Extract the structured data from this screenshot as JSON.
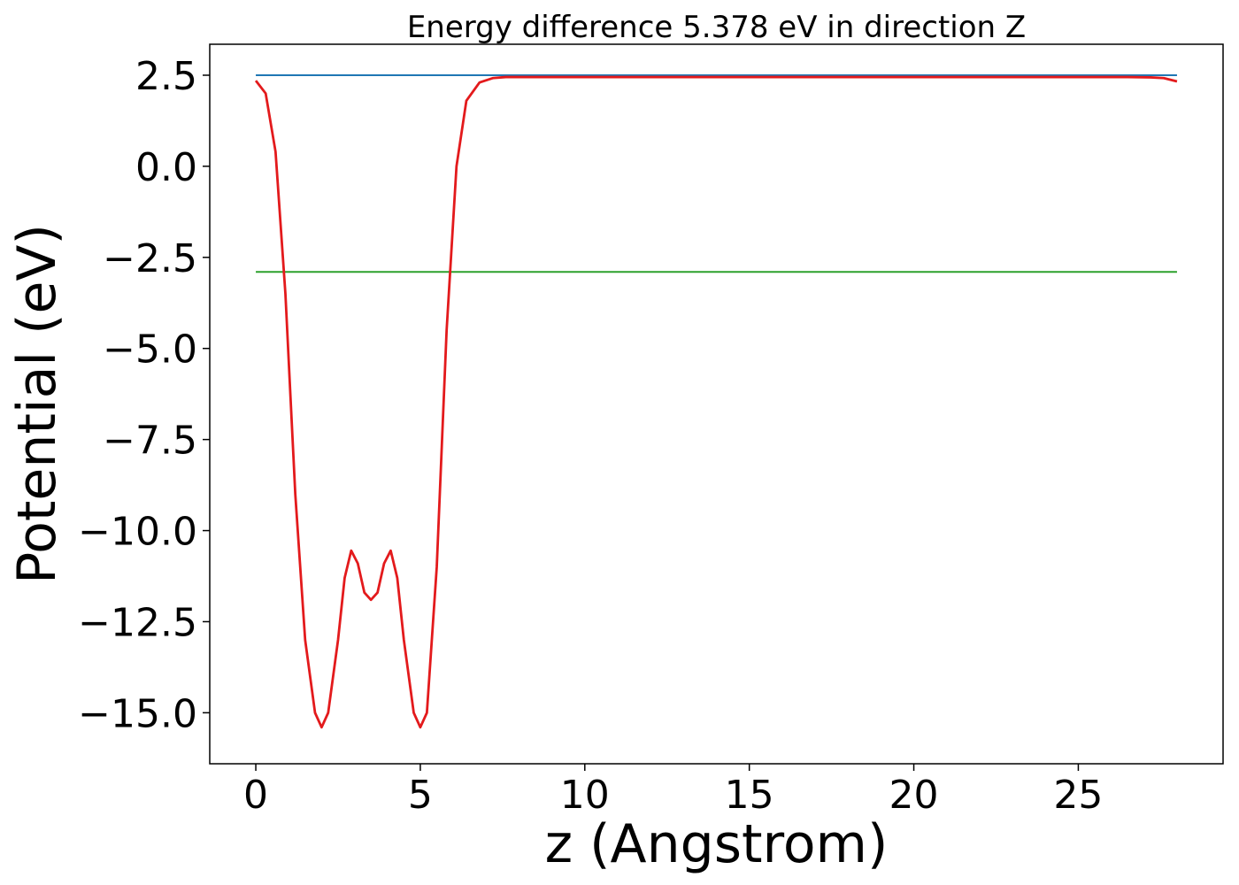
{
  "chart_data": {
    "type": "line",
    "title": "Energy difference 5.378 eV in direction Z",
    "xlabel": "z (Angstrom)",
    "ylabel": "Potential (eV)",
    "xlim": [
      -1.4,
      29.4
    ],
    "ylim": [
      -16.4,
      3.35
    ],
    "xticks": [
      0,
      5,
      10,
      15,
      20,
      25
    ],
    "xtick_labels": [
      "0",
      "5",
      "10",
      "15",
      "20",
      "25"
    ],
    "yticks": [
      2.5,
      0.0,
      -2.5,
      -5.0,
      -7.5,
      -10.0,
      -12.5,
      -15.0
    ],
    "ytick_labels": [
      "2.5",
      "0.0",
      "−2.5",
      "−5.0",
      "−7.5",
      "−10.0",
      "−12.5",
      "−15.0"
    ],
    "grid": false,
    "series": [
      {
        "color": "#1f77b4",
        "x": [
          0,
          28.0
        ],
        "y": [
          2.5,
          2.5
        ]
      },
      {
        "color": "#2ca02c",
        "x": [
          0,
          28.0
        ],
        "y": [
          -2.9,
          -2.9
        ]
      },
      {
        "color": "#e31a1c",
        "x": [
          0,
          0.3,
          0.6,
          0.9,
          1.2,
          1.5,
          1.8,
          2.0,
          2.2,
          2.5,
          2.7,
          2.9,
          3.1,
          3.3,
          3.5,
          3.7,
          3.9,
          4.1,
          4.3,
          4.5,
          4.8,
          5.0,
          5.2,
          5.5,
          5.8,
          6.1,
          6.4,
          6.8,
          7.2,
          7.6,
          8.0,
          9.0,
          12.0,
          16.0,
          20.0,
          24.0,
          26.5,
          27.2,
          27.6,
          28.0
        ],
        "y": [
          2.35,
          2.0,
          0.4,
          -3.5,
          -9.0,
          -13.0,
          -15.0,
          -15.4,
          -15.0,
          -13.0,
          -11.3,
          -10.55,
          -10.9,
          -11.7,
          -11.9,
          -11.7,
          -10.9,
          -10.55,
          -11.3,
          -13.0,
          -15.0,
          -15.4,
          -15.0,
          -11.0,
          -4.5,
          0.0,
          1.8,
          2.3,
          2.42,
          2.45,
          2.45,
          2.45,
          2.45,
          2.45,
          2.45,
          2.45,
          2.45,
          2.44,
          2.42,
          2.33
        ]
      }
    ]
  }
}
